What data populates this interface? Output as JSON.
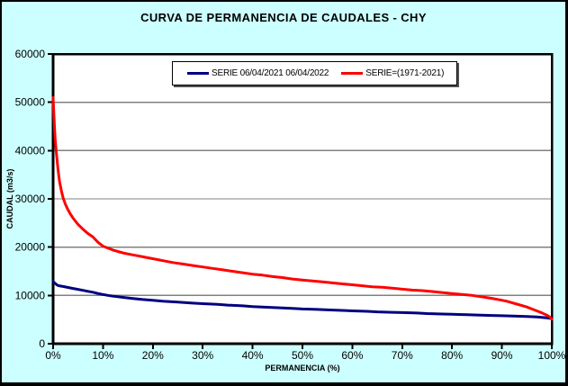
{
  "chart_data": {
    "type": "line",
    "title": "CURVA DE PERMANENCIA DE CAUDALES - CHY",
    "xlabel": "PERMANENCIA (%)",
    "ylabel": "CAUDAL (m3/s)",
    "xlim": [
      0,
      100
    ],
    "ylim": [
      0,
      60000
    ],
    "grid": "horizontal",
    "legend_position": "top-center",
    "background_color": "#CCFFFF",
    "plot_background": "#FFFFFF",
    "grid_color": "#808080",
    "axis_color": "#000000",
    "x_ticks": [
      {
        "value": 0,
        "label": "0%"
      },
      {
        "value": 10,
        "label": "10%"
      },
      {
        "value": 20,
        "label": "20%"
      },
      {
        "value": 30,
        "label": "30%"
      },
      {
        "value": 40,
        "label": "40%"
      },
      {
        "value": 50,
        "label": "50%"
      },
      {
        "value": 60,
        "label": "60%"
      },
      {
        "value": 70,
        "label": "70%"
      },
      {
        "value": 80,
        "label": "80%"
      },
      {
        "value": 90,
        "label": "90%"
      },
      {
        "value": 100,
        "label": "100%"
      }
    ],
    "y_ticks": [
      {
        "value": 0,
        "label": "0"
      },
      {
        "value": 10000,
        "label": "10000"
      },
      {
        "value": 20000,
        "label": "20000"
      },
      {
        "value": 30000,
        "label": "30000"
      },
      {
        "value": 40000,
        "label": "40000"
      },
      {
        "value": 50000,
        "label": "50000"
      },
      {
        "value": 60000,
        "label": "60000"
      }
    ],
    "series": [
      {
        "name": "SERIE 06/04/2021 06/04/2022",
        "color": "#000080",
        "points": [
          [
            0,
            12900
          ],
          [
            0.4,
            12500
          ],
          [
            0.8,
            12150
          ],
          [
            1.2,
            12000
          ],
          [
            2,
            11850
          ],
          [
            3,
            11650
          ],
          [
            4,
            11450
          ],
          [
            5,
            11250
          ],
          [
            6,
            11050
          ],
          [
            7,
            10850
          ],
          [
            8,
            10650
          ],
          [
            9,
            10400
          ],
          [
            10,
            10200
          ],
          [
            11,
            10000
          ],
          [
            12,
            9850
          ],
          [
            14,
            9600
          ],
          [
            16,
            9350
          ],
          [
            18,
            9150
          ],
          [
            20,
            9000
          ],
          [
            22,
            8800
          ],
          [
            25,
            8600
          ],
          [
            28,
            8400
          ],
          [
            30,
            8300
          ],
          [
            33,
            8150
          ],
          [
            35,
            8000
          ],
          [
            38,
            7850
          ],
          [
            40,
            7700
          ],
          [
            43,
            7550
          ],
          [
            45,
            7450
          ],
          [
            48,
            7300
          ],
          [
            50,
            7200
          ],
          [
            53,
            7100
          ],
          [
            55,
            7000
          ],
          [
            58,
            6900
          ],
          [
            60,
            6800
          ],
          [
            63,
            6700
          ],
          [
            65,
            6600
          ],
          [
            68,
            6500
          ],
          [
            70,
            6450
          ],
          [
            73,
            6350
          ],
          [
            75,
            6250
          ],
          [
            78,
            6150
          ],
          [
            80,
            6100
          ],
          [
            83,
            6000
          ],
          [
            85,
            5950
          ],
          [
            88,
            5850
          ],
          [
            90,
            5800
          ],
          [
            93,
            5700
          ],
          [
            95,
            5650
          ],
          [
            97,
            5550
          ],
          [
            98,
            5450
          ],
          [
            99,
            5350
          ],
          [
            100,
            5200
          ]
        ]
      },
      {
        "name": "SERIE=(1971-2021)",
        "color": "#FF0000",
        "points": [
          [
            0,
            51000
          ],
          [
            0.2,
            46500
          ],
          [
            0.4,
            42500
          ],
          [
            0.7,
            39000
          ],
          [
            1,
            36000
          ],
          [
            1.3,
            33500
          ],
          [
            1.7,
            31500
          ],
          [
            2,
            30200
          ],
          [
            2.5,
            28800
          ],
          [
            3,
            27700
          ],
          [
            3.5,
            26800
          ],
          [
            4,
            26000
          ],
          [
            5,
            24700
          ],
          [
            6,
            23700
          ],
          [
            7,
            22800
          ],
          [
            8,
            22100
          ],
          [
            9,
            21000
          ],
          [
            10,
            20200
          ],
          [
            11,
            19800
          ],
          [
            12,
            19400
          ],
          [
            13,
            19100
          ],
          [
            14,
            18800
          ],
          [
            15,
            18600
          ],
          [
            16,
            18400
          ],
          [
            17,
            18200
          ],
          [
            18,
            18000
          ],
          [
            19,
            17800
          ],
          [
            20,
            17600
          ],
          [
            22,
            17200
          ],
          [
            24,
            16800
          ],
          [
            26,
            16500
          ],
          [
            28,
            16200
          ],
          [
            30,
            15900
          ],
          [
            32,
            15600
          ],
          [
            34,
            15300
          ],
          [
            36,
            15000
          ],
          [
            38,
            14700
          ],
          [
            40,
            14400
          ],
          [
            42,
            14200
          ],
          [
            44,
            13900
          ],
          [
            46,
            13700
          ],
          [
            48,
            13400
          ],
          [
            50,
            13200
          ],
          [
            52,
            13000
          ],
          [
            54,
            12800
          ],
          [
            56,
            12600
          ],
          [
            58,
            12400
          ],
          [
            60,
            12200
          ],
          [
            62,
            12000
          ],
          [
            64,
            11800
          ],
          [
            66,
            11700
          ],
          [
            68,
            11500
          ],
          [
            70,
            11300
          ],
          [
            72,
            11100
          ],
          [
            74,
            11000
          ],
          [
            76,
            10800
          ],
          [
            78,
            10600
          ],
          [
            80,
            10400
          ],
          [
            82,
            10200
          ],
          [
            84,
            10000
          ],
          [
            86,
            9700
          ],
          [
            88,
            9400
          ],
          [
            90,
            9000
          ],
          [
            91,
            8800
          ],
          [
            92,
            8500
          ],
          [
            93,
            8200
          ],
          [
            94,
            7900
          ],
          [
            95,
            7600
          ],
          [
            96,
            7200
          ],
          [
            97,
            6800
          ],
          [
            98,
            6400
          ],
          [
            99,
            5900
          ],
          [
            99.5,
            5600
          ],
          [
            100,
            5100
          ]
        ]
      }
    ]
  }
}
